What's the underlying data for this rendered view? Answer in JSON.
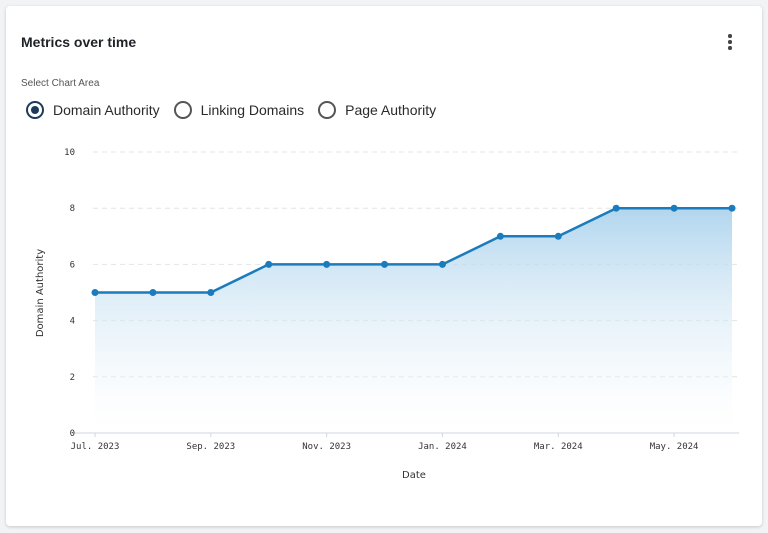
{
  "card": {
    "title": "Metrics over time"
  },
  "controls": {
    "label": "Select Chart Area",
    "options": [
      {
        "label": "Domain Authority",
        "selected": true
      },
      {
        "label": "Linking Domains",
        "selected": false
      },
      {
        "label": "Page Authority",
        "selected": false
      }
    ]
  },
  "icons": {
    "menu": "more-vertical-icon"
  },
  "colors": {
    "line": "#1a7bbd",
    "area_top": "#a9d1ec",
    "area_bottom": "#ffffff",
    "grid": "#e4e4e4",
    "radio_selected": "#1c3b5a"
  },
  "chart_data": {
    "type": "area",
    "xlabel": "Date",
    "ylabel": "Domain Authority",
    "ylim": [
      0,
      10
    ],
    "yticks": [
      0,
      2,
      4,
      6,
      8,
      10
    ],
    "grid": true,
    "x": [
      "2023-07",
      "2023-08",
      "2023-09",
      "2023-10",
      "2023-11",
      "2023-12",
      "2024-01",
      "2024-02",
      "2024-03",
      "2024-04",
      "2024-05",
      "2024-06"
    ],
    "x_tick_labels": [
      "Jul. 2023",
      "Sep. 2023",
      "Nov. 2023",
      "Jan. 2024",
      "Mar. 2024",
      "May. 2024"
    ],
    "x_tick_values": [
      "2023-07",
      "2023-09",
      "2023-11",
      "2024-01",
      "2024-03",
      "2024-05"
    ],
    "series": [
      {
        "values": [
          5,
          5,
          5,
          6,
          6,
          6,
          6,
          7,
          7,
          8,
          8,
          8
        ]
      }
    ]
  }
}
